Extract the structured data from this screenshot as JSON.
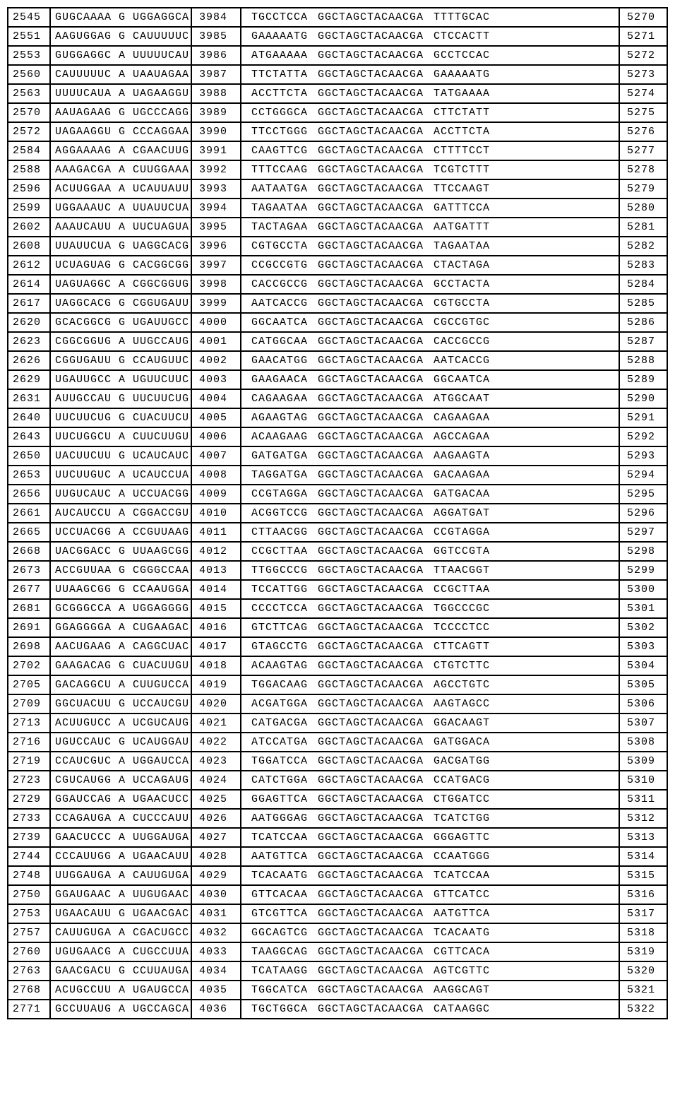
{
  "table": {
    "rows": [
      {
        "c1": "2545",
        "c2": "GUGCAAAA G UGGAGGCA",
        "c3": "3984",
        "c4": "TGCCTCCA GGCTAGCTACAACGA TTTTGCAC",
        "c5": "5270"
      },
      {
        "c1": "2551",
        "c2": "AAGUGGAG G CAUUUUUC",
        "c3": "3985",
        "c4": "GAAAAATG GGCTAGCTACAACGA CTCCACTT",
        "c5": "5271"
      },
      {
        "c1": "2553",
        "c2": "GUGGAGGC A UUUUUCAU",
        "c3": "3986",
        "c4": "ATGAAAAA GGCTAGCTACAACGA GCCTCCAC",
        "c5": "5272"
      },
      {
        "c1": "2560",
        "c2": "CAUUUUUC A UAAUAGAA",
        "c3": "3987",
        "c4": "TTCTATTA GGCTAGCTACAACGA GAAAAATG",
        "c5": "5273"
      },
      {
        "c1": "2563",
        "c2": "UUUUCAUA A UAGAAGGU",
        "c3": "3988",
        "c4": "ACCTTCTA GGCTAGCTACAACGA TATGAAAA",
        "c5": "5274"
      },
      {
        "c1": "2570",
        "c2": "AAUAGAAG G UGCCCAGG",
        "c3": "3989",
        "c4": "CCTGGGCA GGCTAGCTACAACGA CTTCTATT",
        "c5": "5275"
      },
      {
        "c1": "2572",
        "c2": "UAGAAGGU G CCCAGGAA",
        "c3": "3990",
        "c4": "TTCCTGGG GGCTAGCTACAACGA ACCTTCTA",
        "c5": "5276"
      },
      {
        "c1": "2584",
        "c2": "AGGAAAAG A CGAACUUG",
        "c3": "3991",
        "c4": "CAAGTTCG GGCTAGCTACAACGA CTTTTCCT",
        "c5": "5277"
      },
      {
        "c1": "2588",
        "c2": "AAAGACGA A CUUGGAAA",
        "c3": "3992",
        "c4": "TTTCCAAG GGCTAGCTACAACGA TCGTCTTT",
        "c5": "5278"
      },
      {
        "c1": "2596",
        "c2": "ACUUGGAA A UCAUUAUU",
        "c3": "3993",
        "c4": "AATAATGA GGCTAGCTACAACGA TTCCAAGT",
        "c5": "5279"
      },
      {
        "c1": "2599",
        "c2": "UGGAAAUC A UUAUUCUA",
        "c3": "3994",
        "c4": "TAGAATAA GGCTAGCTACAACGA GATTTCCA",
        "c5": "5280"
      },
      {
        "c1": "2602",
        "c2": "AAAUCAUU A UUCUAGUA",
        "c3": "3995",
        "c4": "TACTAGAA GGCTAGCTACAACGA AATGATTT",
        "c5": "5281"
      },
      {
        "c1": "2608",
        "c2": "UUAUUCUA G UAGGCACG",
        "c3": "3996",
        "c4": "CGTGCCTA GGCTAGCTACAACGA TAGAATAA",
        "c5": "5282"
      },
      {
        "c1": "2612",
        "c2": "UCUAGUAG G CACGGCGG",
        "c3": "3997",
        "c4": "CCGCCGTG GGCTAGCTACAACGA CTACTAGA",
        "c5": "5283"
      },
      {
        "c1": "2614",
        "c2": "UAGUAGGC A CGGCGGUG",
        "c3": "3998",
        "c4": "CACCGCCG GGCTAGCTACAACGA GCCTACTA",
        "c5": "5284"
      },
      {
        "c1": "2617",
        "c2": "UAGGCACG G CGGUGAUU",
        "c3": "3999",
        "c4": "AATCACCG GGCTAGCTACAACGA CGTGCCTA",
        "c5": "5285"
      },
      {
        "c1": "2620",
        "c2": "GCACGGCG G UGAUUGCC",
        "c3": "4000",
        "c4": "GGCAATCA GGCTAGCTACAACGA CGCCGTGC",
        "c5": "5286"
      },
      {
        "c1": "2623",
        "c2": "CGGCGGUG A UUGCCAUG",
        "c3": "4001",
        "c4": "CATGGCAA GGCTAGCTACAACGA CACCGCCG",
        "c5": "5287"
      },
      {
        "c1": "2626",
        "c2": "CGGUGAUU G CCAUGUUC",
        "c3": "4002",
        "c4": "GAACATGG GGCTAGCTACAACGA AATCACCG",
        "c5": "5288"
      },
      {
        "c1": "2629",
        "c2": "UGAUUGCC A UGUUCUUC",
        "c3": "4003",
        "c4": "GAAGAACA GGCTAGCTACAACGA GGCAATCA",
        "c5": "5289"
      },
      {
        "c1": "2631",
        "c2": "AUUGCCAU G UUCUUCUG",
        "c3": "4004",
        "c4": "CAGAAGAA GGCTAGCTACAACGA ATGGCAAT",
        "c5": "5290"
      },
      {
        "c1": "2640",
        "c2": "UUCUUCUG G CUACUUCU",
        "c3": "4005",
        "c4": "AGAAGTAG GGCTAGCTACAACGA CAGAAGAA",
        "c5": "5291"
      },
      {
        "c1": "2643",
        "c2": "UUCUGGCU A CUUCUUGU",
        "c3": "4006",
        "c4": "ACAAGAAG GGCTAGCTACAACGA AGCCAGAA",
        "c5": "5292"
      },
      {
        "c1": "2650",
        "c2": "UACUUCUU G UCAUCAUC",
        "c3": "4007",
        "c4": "GATGATGA GGCTAGCTACAACGA AAGAAGTA",
        "c5": "5293"
      },
      {
        "c1": "2653",
        "c2": "UUCUUGUC A UCAUCCUA",
        "c3": "4008",
        "c4": "TAGGATGA GGCTAGCTACAACGA GACAAGAA",
        "c5": "5294"
      },
      {
        "c1": "2656",
        "c2": "UUGUCAUC A UCCUACGG",
        "c3": "4009",
        "c4": "CCGTAGGA GGCTAGCTACAACGA GATGACAA",
        "c5": "5295"
      },
      {
        "c1": "2661",
        "c2": "AUCAUCCU A CGGACCGU",
        "c3": "4010",
        "c4": "ACGGTCCG GGCTAGCTACAACGA AGGATGAT",
        "c5": "5296"
      },
      {
        "c1": "2665",
        "c2": "UCCUACGG A CCGUUAAG",
        "c3": "4011",
        "c4": "CTTAACGG GGCTAGCTACAACGA CCGTAGGA",
        "c5": "5297"
      },
      {
        "c1": "2668",
        "c2": "UACGGACC G UUAAGCGG",
        "c3": "4012",
        "c4": "CCGCTTAA GGCTAGCTACAACGA GGTCCGTA",
        "c5": "5298"
      },
      {
        "c1": "2673",
        "c2": "ACCGUUAA G CGGGCCAA",
        "c3": "4013",
        "c4": "TTGGCCCG GGCTAGCTACAACGA TTAACGGT",
        "c5": "5299"
      },
      {
        "c1": "2677",
        "c2": "UUAAGCGG G CCAAUGGA",
        "c3": "4014",
        "c4": "TCCATTGG GGCTAGCTACAACGA CCGCTTAA",
        "c5": "5300"
      },
      {
        "c1": "2681",
        "c2": "GCGGGCCA A UGGAGGGG",
        "c3": "4015",
        "c4": "CCCCTCCA GGCTAGCTACAACGA TGGCCCGC",
        "c5": "5301"
      },
      {
        "c1": "2691",
        "c2": "GGAGGGGA A CUGAAGAC",
        "c3": "4016",
        "c4": "GTCTTCAG GGCTAGCTACAACGA TCCCCTCC",
        "c5": "5302"
      },
      {
        "c1": "2698",
        "c2": "AACUGAAG A CAGGCUAC",
        "c3": "4017",
        "c4": "GTAGCCTG GGCTAGCTACAACGA CTTCAGTT",
        "c5": "5303"
      },
      {
        "c1": "2702",
        "c2": "GAAGACAG G CUACUUGU",
        "c3": "4018",
        "c4": "ACAAGTAG GGCTAGCTACAACGA CTGTCTTC",
        "c5": "5304"
      },
      {
        "c1": "2705",
        "c2": "GACAGGCU A CUUGUCCA",
        "c3": "4019",
        "c4": "TGGACAAG GGCTAGCTACAACGA AGCCTGTC",
        "c5": "5305"
      },
      {
        "c1": "2709",
        "c2": "GGCUACUU G UCCAUCGU",
        "c3": "4020",
        "c4": "ACGATGGA GGCTAGCTACAACGA AAGTAGCC",
        "c5": "5306"
      },
      {
        "c1": "2713",
        "c2": "ACUUGUCC A UCGUCAUG",
        "c3": "4021",
        "c4": "CATGACGA GGCTAGCTACAACGA GGACAAGT",
        "c5": "5307"
      },
      {
        "c1": "2716",
        "c2": "UGUCCAUC G UCAUGGAU",
        "c3": "4022",
        "c4": "ATCCATGA GGCTAGCTACAACGA GATGGACA",
        "c5": "5308"
      },
      {
        "c1": "2719",
        "c2": "CCAUCGUC A UGGAUCCA",
        "c3": "4023",
        "c4": "TGGATCCA GGCTAGCTACAACGA GACGATGG",
        "c5": "5309"
      },
      {
        "c1": "2723",
        "c2": "CGUCAUGG A UCCAGAUG",
        "c3": "4024",
        "c4": "CATCTGGA GGCTAGCTACAACGA CCATGACG",
        "c5": "5310"
      },
      {
        "c1": "2729",
        "c2": "GGAUCCAG A UGAACUCC",
        "c3": "4025",
        "c4": "GGAGTTCA GGCTAGCTACAACGA CTGGATCC",
        "c5": "5311"
      },
      {
        "c1": "2733",
        "c2": "CCAGAUGA A CUCCCAUU",
        "c3": "4026",
        "c4": "AATGGGAG GGCTAGCTACAACGA TCATCTGG",
        "c5": "5312"
      },
      {
        "c1": "2739",
        "c2": "GAACUCCC A UUGGAUGA",
        "c3": "4027",
        "c4": "TCATCCAA GGCTAGCTACAACGA GGGAGTTC",
        "c5": "5313"
      },
      {
        "c1": "2744",
        "c2": "CCCAUUGG A UGAACAUU",
        "c3": "4028",
        "c4": "AATGTTCA GGCTAGCTACAACGA CCAATGGG",
        "c5": "5314"
      },
      {
        "c1": "2748",
        "c2": "UUGGAUGA A CAUUGUGA",
        "c3": "4029",
        "c4": "TCACAATG GGCTAGCTACAACGA TCATCCAA",
        "c5": "5315"
      },
      {
        "c1": "2750",
        "c2": "GGAUGAAC A UUGUGAAC",
        "c3": "4030",
        "c4": "GTTCACAA GGCTAGCTACAACGA GTTCATCC",
        "c5": "5316"
      },
      {
        "c1": "2753",
        "c2": "UGAACAUU G UGAACGAC",
        "c3": "4031",
        "c4": "GTCGTTCA GGCTAGCTACAACGA AATGTTCA",
        "c5": "5317"
      },
      {
        "c1": "2757",
        "c2": "CAUUGUGA A CGACUGCC",
        "c3": "4032",
        "c4": "GGCAGTCG GGCTAGCTACAACGA TCACAATG",
        "c5": "5318"
      },
      {
        "c1": "2760",
        "c2": "UGUGAACG A CUGCCUUA",
        "c3": "4033",
        "c4": "TAAGGCAG GGCTAGCTACAACGA CGTTCACA",
        "c5": "5319"
      },
      {
        "c1": "2763",
        "c2": "GAACGACU G CCUUAUGA",
        "c3": "4034",
        "c4": "TCATAAGG GGCTAGCTACAACGA AGTCGTTC",
        "c5": "5320"
      },
      {
        "c1": "2768",
        "c2": "ACUGCCUU A UGAUGCCA",
        "c3": "4035",
        "c4": "TGGCATCA GGCTAGCTACAACGA AAGGCAGT",
        "c5": "5321"
      },
      {
        "c1": "2771",
        "c2": "GCCUUAUG A UGCCAGCA",
        "c3": "4036",
        "c4": "TGCTGGCA GGCTAGCTACAACGA CATAAGGC",
        "c5": "5322"
      }
    ]
  }
}
